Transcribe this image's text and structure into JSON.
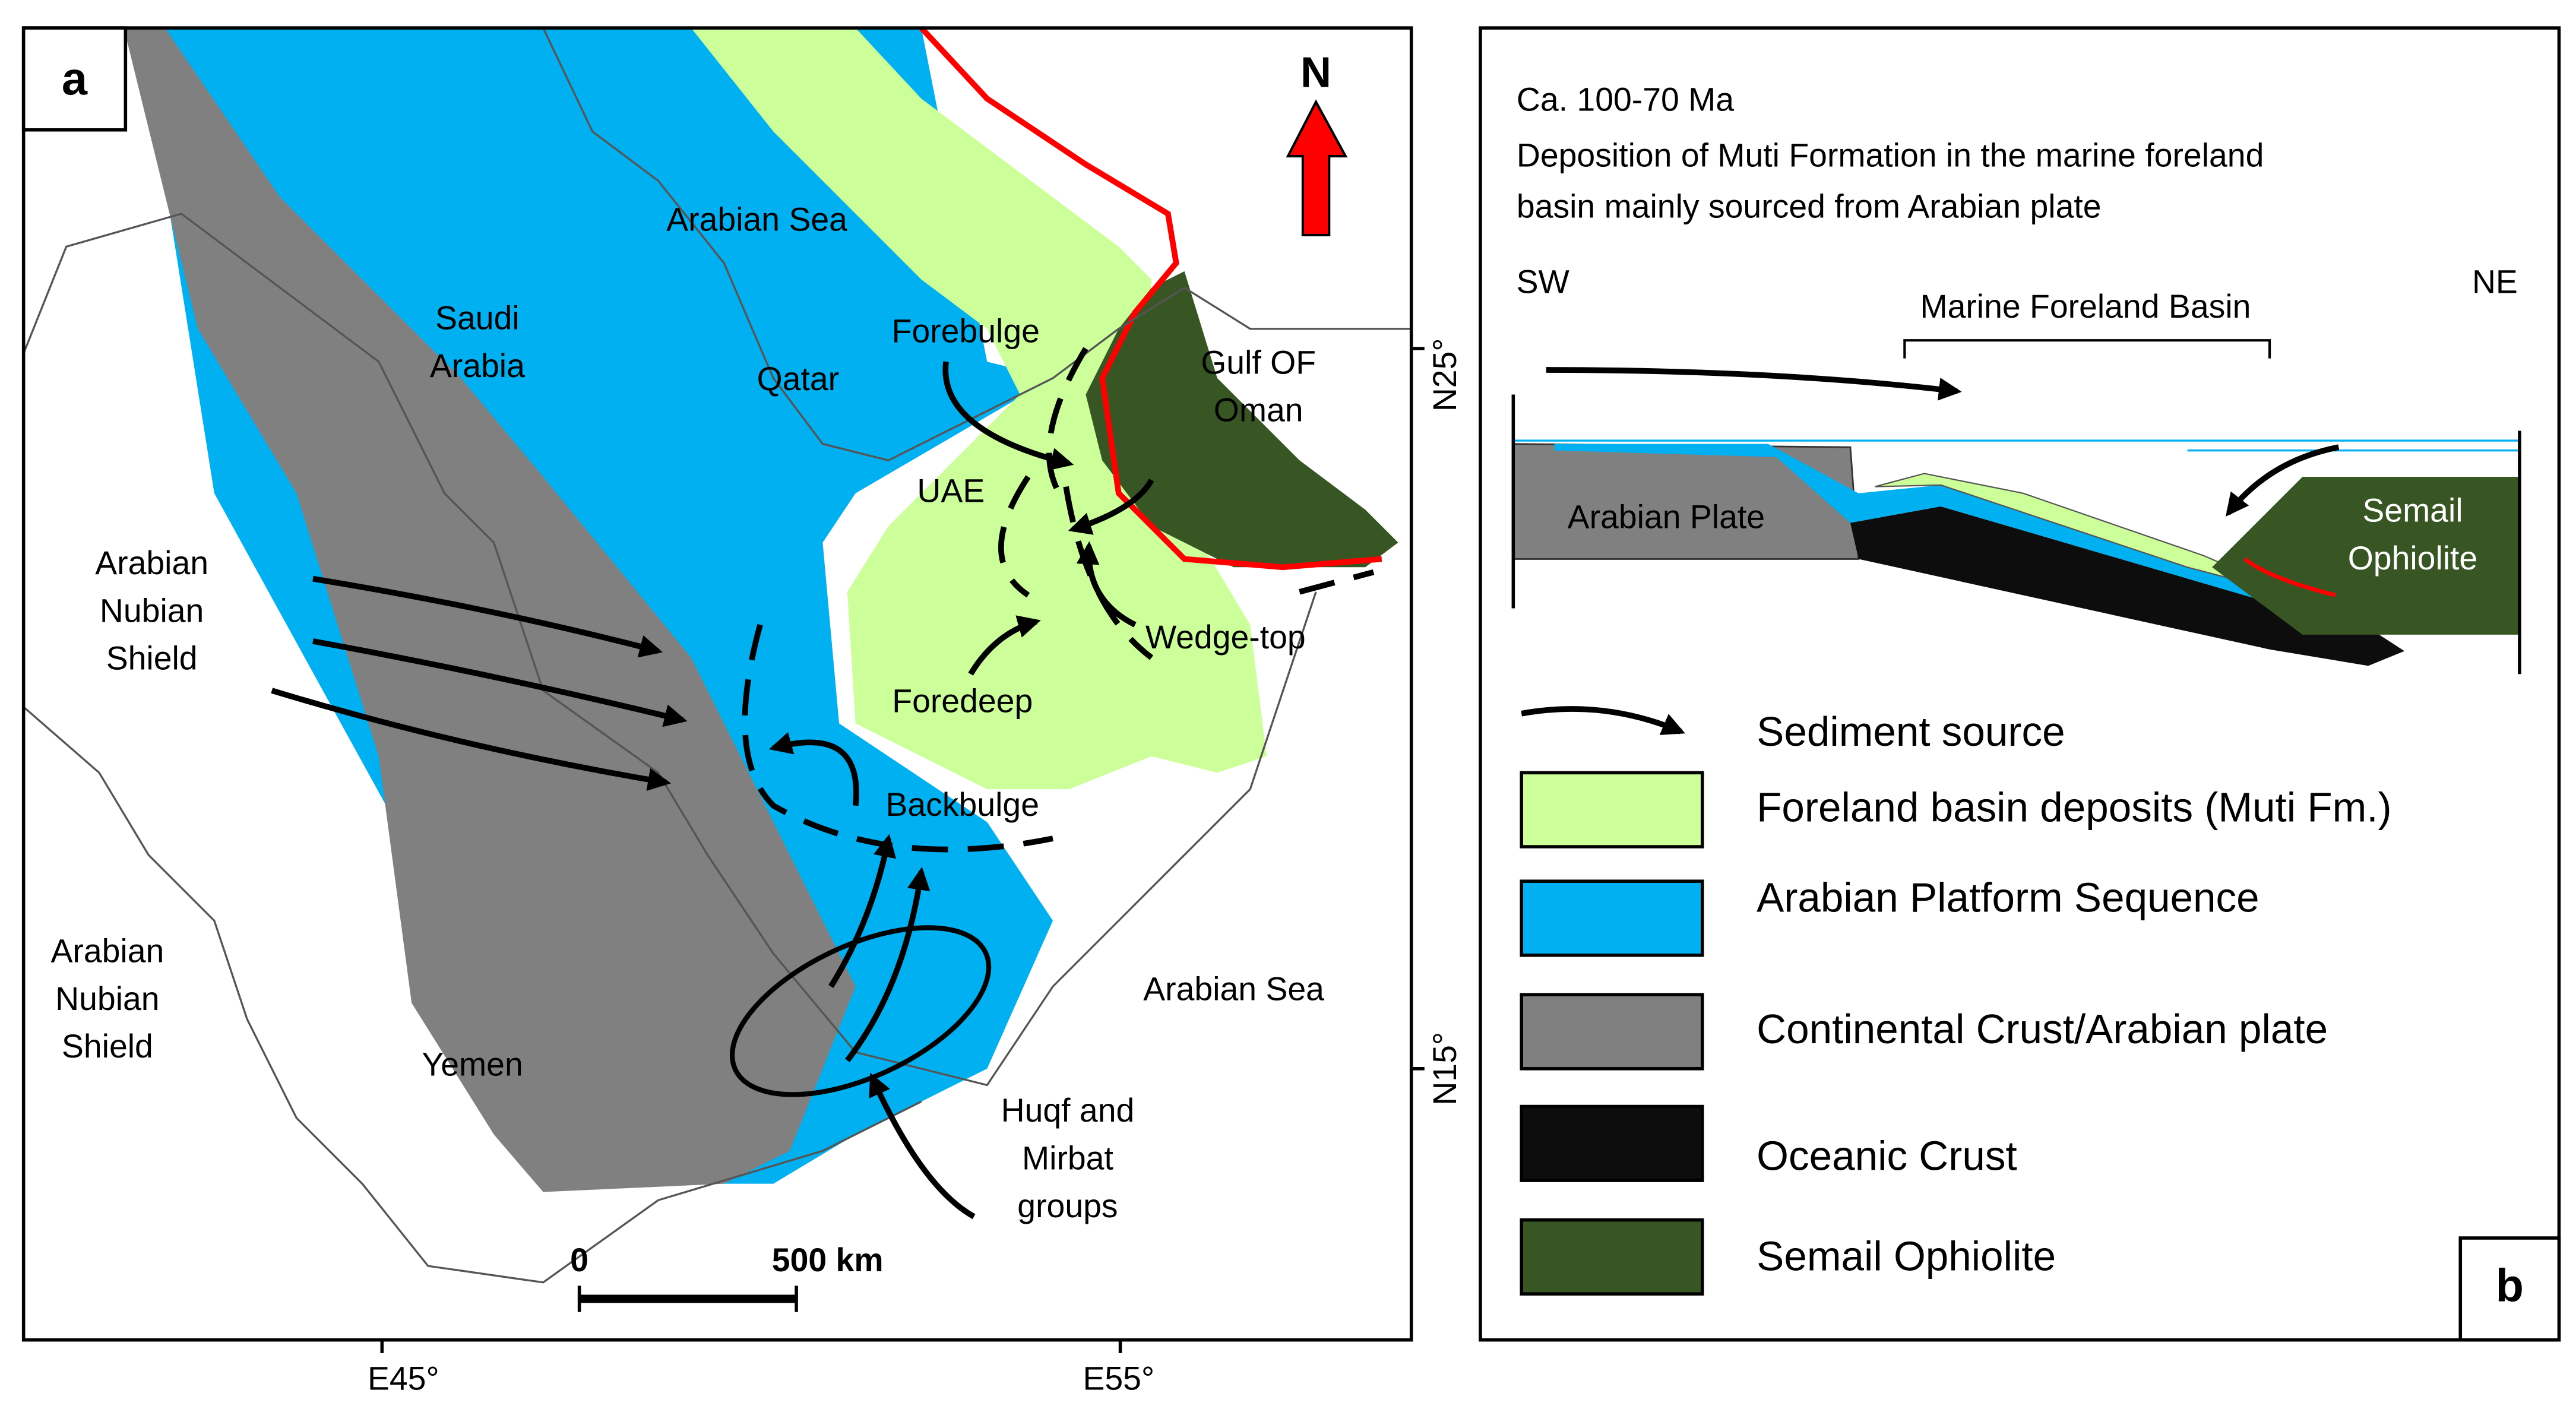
{
  "panel_a": {
    "label": "a",
    "north": "N",
    "places": [
      [
        "Arabian Sea"
      ],
      [
        "Saudi",
        "Arabia"
      ],
      [
        "Qatar"
      ],
      [
        "Forebulge"
      ],
      [
        "Gulf OF",
        "Oman"
      ],
      [
        "UAE"
      ],
      [
        "Arabian",
        "Nubian",
        "Shield"
      ],
      [
        "Wedge-top"
      ],
      [
        "Foredeep"
      ],
      [
        "Backbulge"
      ],
      [
        "Arabian Sea"
      ],
      [
        "Arabian",
        "Nubian",
        "Shield"
      ],
      [
        "Yemen"
      ],
      [
        "Huqf and",
        "Mirbat",
        "groups"
      ]
    ],
    "scale": [
      "0",
      "500 km"
    ],
    "lat_ticks": [
      "N25°",
      "N15°"
    ],
    "lon_ticks": [
      "E45°",
      "E55°"
    ]
  },
  "panel_b": {
    "label": "b",
    "title": [
      "Ca. 100-70 Ma",
      "Deposition of Muti Formation in the marine foreland",
      "basin mainly sourced from Arabian plate"
    ],
    "sw": "SW",
    "ne": "NE",
    "basin": "Marine Foreland Basin",
    "plate": "Arabian Plate",
    "ophiolite": [
      "Semail",
      "Ophiolite"
    ],
    "legend": [
      "Sediment source",
      "Foreland basin deposits (Muti Fm.)",
      "Arabian Platform Sequence",
      "Continental Crust/Arabian plate",
      "Oceanic Crust",
      "Semail Ophiolite"
    ]
  }
}
